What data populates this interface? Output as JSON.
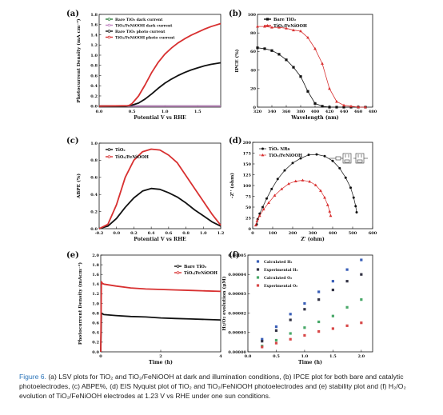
{
  "chart_data": [
    {
      "panel": "(a)",
      "type": "line",
      "xlabel": "Potential V vs RHE",
      "ylabel": "Photocurrent Density (mA cm⁻²)",
      "xlim": [
        0.0,
        1.85
      ],
      "ylim": [
        -0.02,
        1.8
      ],
      "xticks": [
        "0.0",
        "0.5",
        "1.0",
        "1.5"
      ],
      "yticks": [
        "0.0",
        "0.2",
        "0.4",
        "0.6",
        "0.8",
        "1.0",
        "1.2",
        "1.4",
        "1.6",
        "1.8"
      ],
      "legend_position": "top-left",
      "series": [
        {
          "name": "Bare TiO₂ dark current",
          "color": "#2a7a3a",
          "x": [
            0.0,
            0.5,
            1.0,
            1.5,
            1.85
          ],
          "y": [
            0.0,
            0.0,
            0.0,
            0.0,
            0.0
          ]
        },
        {
          "name": "TiO₂/FeNiOOH dark current",
          "color": "#c080c0",
          "x": [
            0.0,
            0.5,
            1.0,
            1.5,
            1.85
          ],
          "y": [
            0.0,
            0.0,
            0.0,
            0.0,
            0.0
          ]
        },
        {
          "name": "Bare TiO₂ photo current",
          "color": "#111111",
          "x": [
            0.0,
            0.4,
            0.5,
            0.6,
            0.7,
            0.8,
            0.9,
            1.0,
            1.1,
            1.2,
            1.3,
            1.4,
            1.5,
            1.6,
            1.7,
            1.85
          ],
          "y": [
            0.0,
            0.0,
            0.02,
            0.06,
            0.14,
            0.24,
            0.35,
            0.45,
            0.53,
            0.6,
            0.66,
            0.71,
            0.75,
            0.79,
            0.82,
            0.85
          ]
        },
        {
          "name": "TiO₂/FeNiOOH photo current",
          "color": "#d83030",
          "x": [
            0.0,
            0.45,
            0.5,
            0.6,
            0.7,
            0.8,
            0.9,
            1.0,
            1.1,
            1.2,
            1.3,
            1.4,
            1.5,
            1.6,
            1.7,
            1.85
          ],
          "y": [
            0.0,
            0.01,
            0.05,
            0.2,
            0.42,
            0.66,
            0.86,
            1.02,
            1.14,
            1.24,
            1.32,
            1.39,
            1.45,
            1.51,
            1.56,
            1.62
          ]
        }
      ]
    },
    {
      "panel": "(b)",
      "type": "line",
      "xlabel": "Wavelength (nm)",
      "ylabel": "IPCE (%)",
      "xlim": [
        320,
        480
      ],
      "ylim": [
        0,
        100
      ],
      "xticks": [
        "320",
        "340",
        "360",
        "380",
        "400",
        "420",
        "440",
        "460",
        "480"
      ],
      "yticks": [
        "0",
        "20",
        "40",
        "60",
        "80",
        "100"
      ],
      "legend_position": "top-left",
      "series": [
        {
          "name": "Bare TiO₂",
          "color": "#111111",
          "marker": "square",
          "x": [
            320,
            330,
            340,
            350,
            360,
            370,
            380,
            390,
            400,
            410,
            420,
            430,
            440,
            450,
            460,
            470
          ],
          "y": [
            64,
            63,
            61,
            57,
            51,
            43,
            33,
            17,
            4,
            1,
            0,
            0,
            0,
            0,
            0,
            0
          ]
        },
        {
          "name": "TiO₂/FeNiOOH",
          "color": "#d83030",
          "marker": "triangle",
          "x": [
            320,
            330,
            340,
            350,
            360,
            370,
            380,
            390,
            400,
            410,
            420,
            430,
            440,
            450,
            460,
            470
          ],
          "y": [
            87,
            87,
            86,
            86,
            85,
            83,
            82,
            75,
            63,
            47,
            20,
            6,
            2,
            1,
            0,
            0
          ]
        }
      ]
    },
    {
      "panel": "(c)",
      "type": "line",
      "xlabel": "Potential V vs RHE",
      "ylabel": "ABPE (%)",
      "xlim": [
        -0.2,
        1.2
      ],
      "ylim": [
        0.0,
        1.0
      ],
      "xticks": [
        "-0.2",
        "0.0",
        "0.2",
        "0.4",
        "0.6",
        "0.8",
        "1.0",
        "1.2"
      ],
      "yticks": [
        "0.0",
        "0.2",
        "0.4",
        "0.6",
        "0.8",
        "1.0"
      ],
      "legend_position": "top-left",
      "series": [
        {
          "name": "TiO₂",
          "color": "#111111",
          "x": [
            -0.2,
            -0.1,
            0.0,
            0.1,
            0.2,
            0.3,
            0.4,
            0.5,
            0.6,
            0.7,
            0.8,
            0.9,
            1.0,
            1.1,
            1.2
          ],
          "y": [
            0.0,
            0.03,
            0.12,
            0.25,
            0.36,
            0.44,
            0.47,
            0.46,
            0.42,
            0.37,
            0.3,
            0.22,
            0.15,
            0.08,
            0.03
          ]
        },
        {
          "name": "TiO₂/FeNiOOH",
          "color": "#d83030",
          "x": [
            -0.2,
            -0.1,
            0.0,
            0.1,
            0.2,
            0.3,
            0.4,
            0.5,
            0.6,
            0.7,
            0.8,
            0.9,
            1.0,
            1.1,
            1.2
          ],
          "y": [
            0.0,
            0.05,
            0.28,
            0.6,
            0.8,
            0.9,
            0.93,
            0.92,
            0.86,
            0.77,
            0.62,
            0.47,
            0.32,
            0.17,
            0.04
          ]
        }
      ]
    },
    {
      "panel": "(d)",
      "type": "scatter",
      "xlabel": "Z' (ohm)",
      "ylabel": "-Z'' (ohm)",
      "xlim": [
        0,
        600
      ],
      "ylim": [
        0,
        200
      ],
      "xticks": [
        "0",
        "100",
        "200",
        "300",
        "400",
        "500",
        "600"
      ],
      "yticks": [
        "0",
        "25",
        "50",
        "75",
        "100",
        "125",
        "150",
        "175",
        "200"
      ],
      "legend_position": "top-left",
      "series": [
        {
          "name": "TiO₂ NRs",
          "color": "#111111",
          "marker": "circle",
          "x": [
            20,
            25,
            35,
            50,
            70,
            95,
            125,
            160,
            200,
            240,
            280,
            320,
            360,
            400,
            435,
            465,
            490,
            505,
            515,
            520
          ],
          "y": [
            10,
            22,
            35,
            50,
            70,
            92,
            115,
            135,
            152,
            163,
            171,
            172,
            168,
            157,
            140,
            118,
            95,
            72,
            52,
            38
          ]
        },
        {
          "name": "TiO₂/FeNiOOH",
          "color": "#d83030",
          "marker": "triangle",
          "x": [
            15,
            22,
            35,
            55,
            80,
            110,
            145,
            180,
            215,
            250,
            285,
            315,
            340,
            360,
            375,
            385,
            390
          ],
          "y": [
            8,
            18,
            30,
            45,
            60,
            77,
            92,
            104,
            110,
            112,
            109,
            101,
            88,
            72,
            55,
            40,
            30
          ]
        }
      ]
    },
    {
      "panel": "(e)",
      "type": "line",
      "xlabel": "Time (h)",
      "ylabel": "Photocurrent Density (mAcm⁻²)",
      "xlim": [
        0,
        4
      ],
      "ylim": [
        0.0,
        2.0
      ],
      "xticks": [
        "0",
        "2",
        "4"
      ],
      "yticks": [
        "0.0",
        "0.2",
        "0.4",
        "0.6",
        "0.8",
        "1.0",
        "1.2",
        "1.4",
        "1.6",
        "1.8",
        "2.0"
      ],
      "legend_position": "top-right",
      "series": [
        {
          "name": "Bare TiO₂",
          "color": "#111111",
          "x": [
            0.0,
            0.02,
            0.05,
            0.1,
            0.5,
            1.0,
            1.5,
            2.0,
            2.5,
            3.0,
            3.5,
            4.0
          ],
          "y": [
            0.0,
            0.8,
            0.79,
            0.77,
            0.75,
            0.73,
            0.72,
            0.7,
            0.69,
            0.68,
            0.67,
            0.66
          ]
        },
        {
          "name": "TiO₂/FeNiOOH",
          "color": "#d83030",
          "x": [
            0.0,
            0.02,
            0.05,
            0.1,
            0.5,
            1.0,
            1.5,
            2.0,
            2.5,
            3.0,
            3.5,
            4.0
          ],
          "y": [
            0.0,
            1.45,
            1.42,
            1.4,
            1.36,
            1.32,
            1.3,
            1.29,
            1.28,
            1.27,
            1.26,
            1.25
          ]
        }
      ]
    },
    {
      "panel": "(f)",
      "type": "scatter",
      "xlabel": "Time (h)",
      "ylabel": "H₂/O₂ evolution (μM)",
      "xlim": [
        0.0,
        2.2
      ],
      "ylim": [
        0.0,
        5e-05
      ],
      "xticks": [
        "0.0",
        "0.5",
        "1.0",
        "1.5",
        "2.0"
      ],
      "yticks": [
        "0.00000",
        "0.00001",
        "0.00002",
        "0.00003",
        "0.00004",
        "0.00005"
      ],
      "legend_position": "top-left",
      "series": [
        {
          "name": "Calculated H₂",
          "color": "#3a5fb8",
          "marker": "square",
          "x": [
            0.25,
            0.5,
            0.75,
            1.0,
            1.25,
            1.5,
            1.75,
            2.0
          ],
          "y": [
            6.5e-06,
            1.3e-05,
            1.95e-05,
            2.5e-05,
            3.1e-05,
            3.65e-05,
            4.25e-05,
            4.75e-05
          ]
        },
        {
          "name": "Experimental H₂",
          "color": "#333344",
          "marker": "square",
          "x": [
            0.25,
            0.5,
            0.75,
            1.0,
            1.25,
            1.5,
            1.75,
            2.0
          ],
          "y": [
            5.5e-06,
            1.1e-05,
            1.65e-05,
            2.2e-05,
            2.7e-05,
            3.2e-05,
            3.65e-05,
            4e-05
          ]
        },
        {
          "name": "Calculated O₂",
          "color": "#48a868",
          "marker": "square",
          "x": [
            0.25,
            0.5,
            0.75,
            1.0,
            1.25,
            1.5,
            1.75,
            2.0
          ],
          "y": [
            3e-06,
            6e-06,
            9.5e-06,
            1.25e-05,
            1.55e-05,
            1.85e-05,
            2.3e-05,
            2.7e-05
          ]
        },
        {
          "name": "Experimental O₂",
          "color": "#d84848",
          "marker": "square",
          "x": [
            0.25,
            0.5,
            0.75,
            1.0,
            1.25,
            1.5,
            1.75,
            2.0
          ],
          "y": [
            2.5e-06,
            4.5e-06,
            6.5e-06,
            8.5e-06,
            1.05e-05,
            1.2e-05,
            1.35e-05,
            1.5e-05
          ]
        }
      ]
    }
  ],
  "caption": {
    "label": "Figure 6.",
    "text": "(a) LSV plots for TiO₂ and TiO₂/FeNiOOH at dark and illumination conditions, (b) IPCE plot for both bare and catalytic photoelectrodes, (c) ABPE%, (d) EIS Nyquist plot of TiO₂ and TiO₂/FeNiOOH photoelectrodes and (e) stability plot and (f) H₂/O₂ evolution of TiO₂/FeNiOOH electrodes at 1.23 V vs RHE under one sun conditions."
  }
}
